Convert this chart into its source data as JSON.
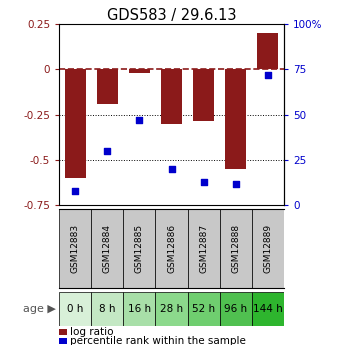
{
  "title": "GDS583 / 29.6.13",
  "categories": [
    "GSM12883",
    "GSM12884",
    "GSM12885",
    "GSM12886",
    "GSM12887",
    "GSM12888",
    "GSM12889"
  ],
  "ages": [
    "0 h",
    "8 h",
    "16 h",
    "28 h",
    "52 h",
    "96 h",
    "144 h"
  ],
  "log_ratio": [
    -0.6,
    -0.19,
    -0.022,
    -0.3,
    -0.285,
    -0.55,
    0.2
  ],
  "percentile": [
    8,
    30,
    47,
    20,
    13,
    12,
    72
  ],
  "bar_color": "#8B1A1A",
  "dot_color": "#0000CC",
  "ylim_left": [
    -0.75,
    0.25
  ],
  "ylim_right": [
    0,
    100
  ],
  "yticks_left": [
    -0.75,
    -0.5,
    -0.25,
    0,
    0.25
  ],
  "yticks_right": [
    0,
    25,
    50,
    75,
    100
  ],
  "ytick_labels_right": [
    "0",
    "25",
    "50",
    "75",
    "100%"
  ],
  "age_bg_colors": [
    "#d8f0d8",
    "#c4e8c4",
    "#a8dfa8",
    "#8cd98c",
    "#6fce6f",
    "#50c050",
    "#2eb52e"
  ],
  "header_bg": "#c8c8c8",
  "legend_label_bar": "log ratio",
  "legend_label_dot": "percentile rank within the sample"
}
